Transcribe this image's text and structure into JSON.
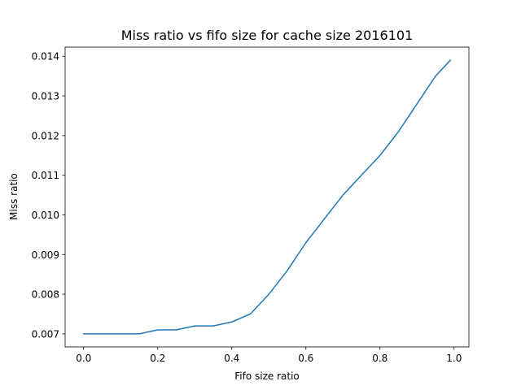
{
  "chart_data": {
    "type": "line",
    "title": "Miss ratio vs fifo size for cache size 2016101",
    "xlabel": "Fifo size ratio",
    "ylabel": "Miss ratio",
    "xlim": [
      -0.05,
      1.04
    ],
    "ylim": [
      0.00667,
      0.01423
    ],
    "xticks": [
      0.0,
      0.2,
      0.4,
      0.6,
      0.8,
      1.0
    ],
    "xtick_labels": [
      "0.0",
      "0.2",
      "0.4",
      "0.6",
      "0.8",
      "1.0"
    ],
    "yticks": [
      0.007,
      0.008,
      0.009,
      0.01,
      0.011,
      0.012,
      0.013,
      0.014
    ],
    "ytick_labels": [
      "0.007",
      "0.008",
      "0.009",
      "0.010",
      "0.011",
      "0.012",
      "0.013",
      "0.014"
    ],
    "grid": false,
    "series": [
      {
        "color": "#1f77b4",
        "x": [
          0.0,
          0.05,
          0.1,
          0.15,
          0.2,
          0.25,
          0.3,
          0.35,
          0.4,
          0.45,
          0.5,
          0.55,
          0.6,
          0.65,
          0.7,
          0.75,
          0.8,
          0.85,
          0.9,
          0.95,
          0.99
        ],
        "y": [
          0.007,
          0.007,
          0.007,
          0.007,
          0.0071,
          0.0071,
          0.0072,
          0.0072,
          0.0073,
          0.0075,
          0.008,
          0.0086,
          0.0093,
          0.0099,
          0.0105,
          0.011,
          0.0115,
          0.0121,
          0.0128,
          0.0135,
          0.0139
        ]
      }
    ]
  }
}
